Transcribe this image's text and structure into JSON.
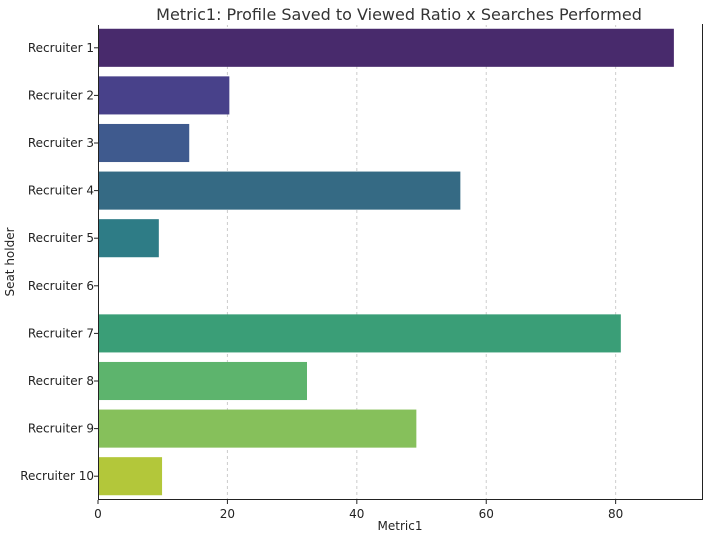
{
  "chart_data": {
    "type": "bar",
    "orientation": "horizontal",
    "title": "Metric1: Profile Saved to Viewed Ratio x Searches Performed",
    "xlabel": "Metric1",
    "ylabel": "Seat holder",
    "xlim": [
      0,
      93.5
    ],
    "xticks": [
      0,
      20,
      40,
      60,
      80
    ],
    "grid": "x-dashed",
    "categories": [
      "Recruiter 1",
      "Recruiter 2",
      "Recruiter 3",
      "Recruiter 4",
      "Recruiter 5",
      "Recruiter 6",
      "Recruiter 7",
      "Recruiter 8",
      "Recruiter 9",
      "Recruiter 10"
    ],
    "values": [
      89.0,
      20.3,
      14.1,
      56.0,
      9.4,
      0,
      80.8,
      32.3,
      49.2,
      9.9
    ],
    "colors": [
      "#482a6c",
      "#48418a",
      "#3f5a8e",
      "#356a84",
      "#2e7c86",
      "#2a8c84",
      "#3a9e77",
      "#5db46d",
      "#86c05b",
      "#b3c73a"
    ]
  }
}
